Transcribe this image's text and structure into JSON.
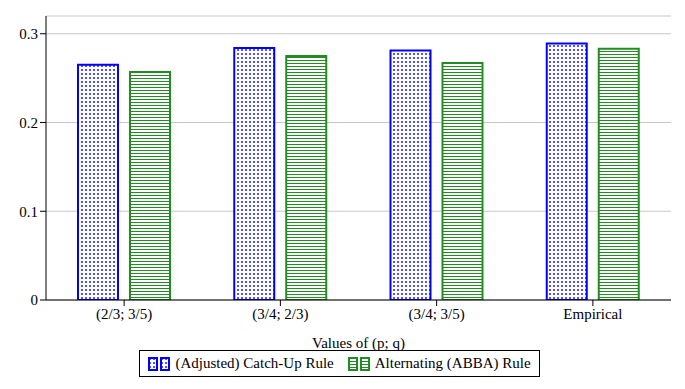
{
  "chart_data": {
    "type": "bar",
    "categories": [
      "(2/3; 3/5)",
      "(3/4; 2/3)",
      "(3/4; 3/5)",
      "Empirical"
    ],
    "x_label": "Values of (p; q)",
    "series": [
      {
        "name": "(Adjusted) Catch-Up Rule",
        "color": "#0000ff",
        "values": [
          0.265,
          0.284,
          0.281,
          0.289
        ]
      },
      {
        "name": "Alternating (ABBA) Rule",
        "color": "#228b22",
        "values": [
          0.257,
          0.275,
          0.267,
          0.283
        ]
      }
    ],
    "ylim": [
      0,
      0.32
    ],
    "yticks": [
      0,
      0.1,
      0.2,
      0.3
    ],
    "grid": true,
    "legend": "bottom"
  }
}
